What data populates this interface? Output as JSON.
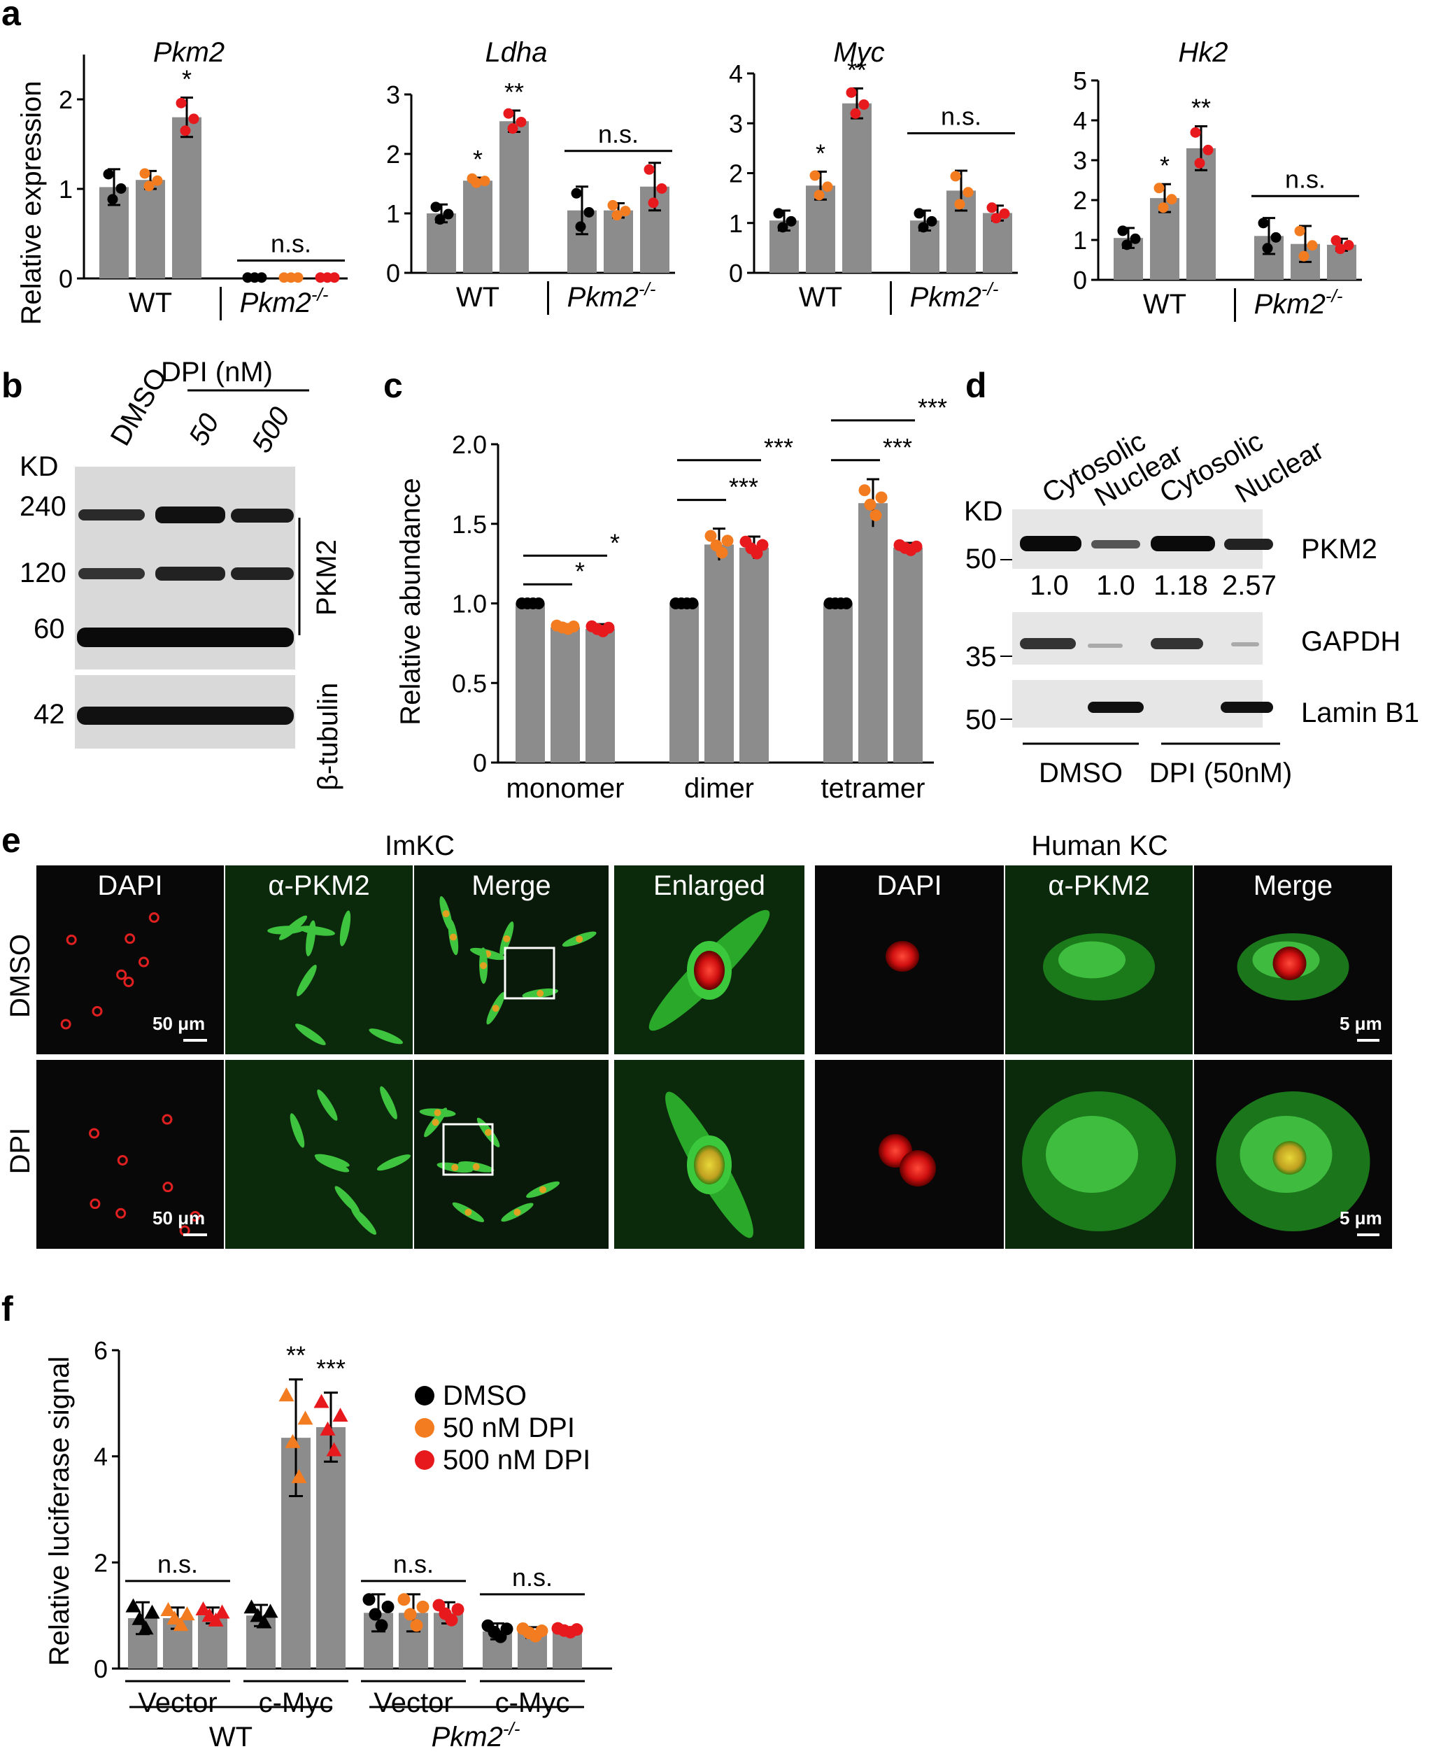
{
  "colors": {
    "bar": "#8c8c8c",
    "dmso": "#000000",
    "dpi50": "#f47c20",
    "dpi500": "#e8191d"
  },
  "panel_letters": [
    "a",
    "b",
    "c",
    "d",
    "e",
    "f"
  ],
  "panel_a": {
    "ylabel": "Relative expression",
    "group_wt": "WT",
    "group_ko": "Pkm2",
    "ko_sup": "-/-",
    "ns": "n.s.",
    "charts": [
      {
        "title": "Pkm2",
        "ylim": [
          0,
          2.5
        ],
        "ticks": [
          0,
          1,
          2
        ],
        "ns_y": 0.2,
        "values": [
          1.02,
          1.1,
          1.8,
          0.01,
          0.01,
          0.01
        ],
        "errors": [
          0.2,
          0.1,
          0.22,
          0,
          0,
          0
        ],
        "stars": [
          "",
          "",
          "*",
          "",
          "",
          ""
        ]
      },
      {
        "title": "Ldha",
        "ylim": [
          0,
          3
        ],
        "ticks": [
          0,
          1,
          2,
          3
        ],
        "ns_y": 2.05,
        "values": [
          1.0,
          1.55,
          2.55,
          1.05,
          1.05,
          1.45
        ],
        "errors": [
          0.15,
          0.05,
          0.18,
          0.4,
          0.12,
          0.4
        ],
        "stars": [
          "",
          "*",
          "**",
          "",
          "",
          ""
        ]
      },
      {
        "title": "Myc",
        "ylim": [
          0,
          4
        ],
        "ticks": [
          0,
          1,
          2,
          3,
          4
        ],
        "ns_y": 2.8,
        "values": [
          1.05,
          1.75,
          3.4,
          1.05,
          1.65,
          1.2
        ],
        "errors": [
          0.2,
          0.28,
          0.3,
          0.2,
          0.4,
          0.15
        ],
        "stars": [
          "",
          "*",
          "**",
          "",
          "",
          ""
        ]
      },
      {
        "title": "Hk2",
        "ylim": [
          0,
          5
        ],
        "ticks": [
          0,
          1,
          2,
          3,
          4,
          5
        ],
        "ns_y": 2.1,
        "values": [
          1.05,
          2.05,
          3.3,
          1.1,
          0.9,
          0.88
        ],
        "errors": [
          0.25,
          0.35,
          0.55,
          0.45,
          0.45,
          0.15
        ],
        "stars": [
          "",
          "*",
          "**",
          "",
          "",
          ""
        ]
      }
    ]
  },
  "panel_b": {
    "lane_labels": [
      "DMSO",
      "50",
      "500"
    ],
    "treatment": "DPI (nM)",
    "kd": "KD",
    "markers": [
      "240",
      "120",
      "60",
      "42"
    ],
    "protein_top": "PKM2",
    "protein_bottom": "β-tubulin"
  },
  "panel_c": {
    "ylabel": "Relative abundance",
    "yticks": [
      "0",
      "0.5",
      "1.0",
      "1.5",
      "2.0"
    ],
    "ylim": [
      0,
      2.0
    ],
    "categories": [
      "monomer",
      "dimer",
      "tetramer"
    ],
    "values": [
      [
        1.0,
        0.85,
        0.84
      ],
      [
        1.0,
        1.37,
        1.35
      ],
      [
        1.0,
        1.63,
        1.35
      ]
    ],
    "errors": [
      [
        0,
        0.02,
        0.03
      ],
      [
        0,
        0.1,
        0.07
      ],
      [
        0,
        0.15,
        0.03
      ]
    ],
    "sig": [
      {
        "group": 0,
        "from": 0,
        "to": 1,
        "y": 1.12,
        "label": "*"
      },
      {
        "group": 0,
        "from": 0,
        "to": 2,
        "y": 1.3,
        "label": "*"
      },
      {
        "group": 1,
        "from": 0,
        "to": 1,
        "y": 1.65,
        "label": "***"
      },
      {
        "group": 1,
        "from": 0,
        "to": 2,
        "y": 1.9,
        "label": "***"
      },
      {
        "group": 2,
        "from": 0,
        "to": 1,
        "y": 1.9,
        "label": "***"
      },
      {
        "group": 2,
        "from": 0,
        "to": 2,
        "y": 2.15,
        "label": "***"
      }
    ]
  },
  "panel_d": {
    "lane_labels": [
      "Cytosolic",
      "Nuclear",
      "Cytosolic",
      "Nuclear"
    ],
    "kd": "KD",
    "proteins": [
      "PKM2",
      "GAPDH",
      "Lamin B1"
    ],
    "markers": [
      "50",
      "35",
      "50"
    ],
    "quant": [
      "1.0",
      "1.0",
      "1.18",
      "2.57"
    ],
    "groups": [
      "DMSO",
      "DPI (50nM)"
    ]
  },
  "panel_e": {
    "section_left": "ImKC",
    "section_right": "Human KC",
    "rows": [
      "DMSO",
      "DPI"
    ],
    "cols_left": [
      "DAPI",
      "α-PKM2",
      "Merge",
      "Enlarged"
    ],
    "cols_right": [
      "DAPI",
      "α-PKM2",
      "Merge"
    ],
    "scale_left": "50 μm",
    "scale_right": "5 μm"
  },
  "panel_f": {
    "ylabel": "Relative luciferase signal",
    "yticks": [
      "0",
      "2",
      "4",
      "6"
    ],
    "ylim": [
      0,
      6
    ],
    "legend": [
      "DMSO",
      "50 nM DPI",
      "500 nM DPI"
    ],
    "subgroups": [
      "Vector",
      "c-Myc",
      "Vector",
      "c-Myc"
    ],
    "groups": [
      "WT",
      "Pkm2"
    ],
    "ko_sup": "-/-",
    "ns": "n.s.",
    "values": [
      [
        0.95,
        0.95,
        1.0
      ],
      [
        1.0,
        4.35,
        4.55
      ],
      [
        1.05,
        1.05,
        1.05
      ],
      [
        0.7,
        0.68,
        0.72
      ]
    ],
    "errors": [
      [
        0.3,
        0.2,
        0.15
      ],
      [
        0.2,
        1.1,
        0.65
      ],
      [
        0.35,
        0.35,
        0.2
      ],
      [
        0.15,
        0.1,
        0.05
      ]
    ],
    "stars": [
      [
        "",
        "",
        ""
      ],
      [
        "",
        "**",
        "***"
      ],
      [
        "",
        "",
        ""
      ],
      [
        "",
        "",
        ""
      ]
    ]
  }
}
